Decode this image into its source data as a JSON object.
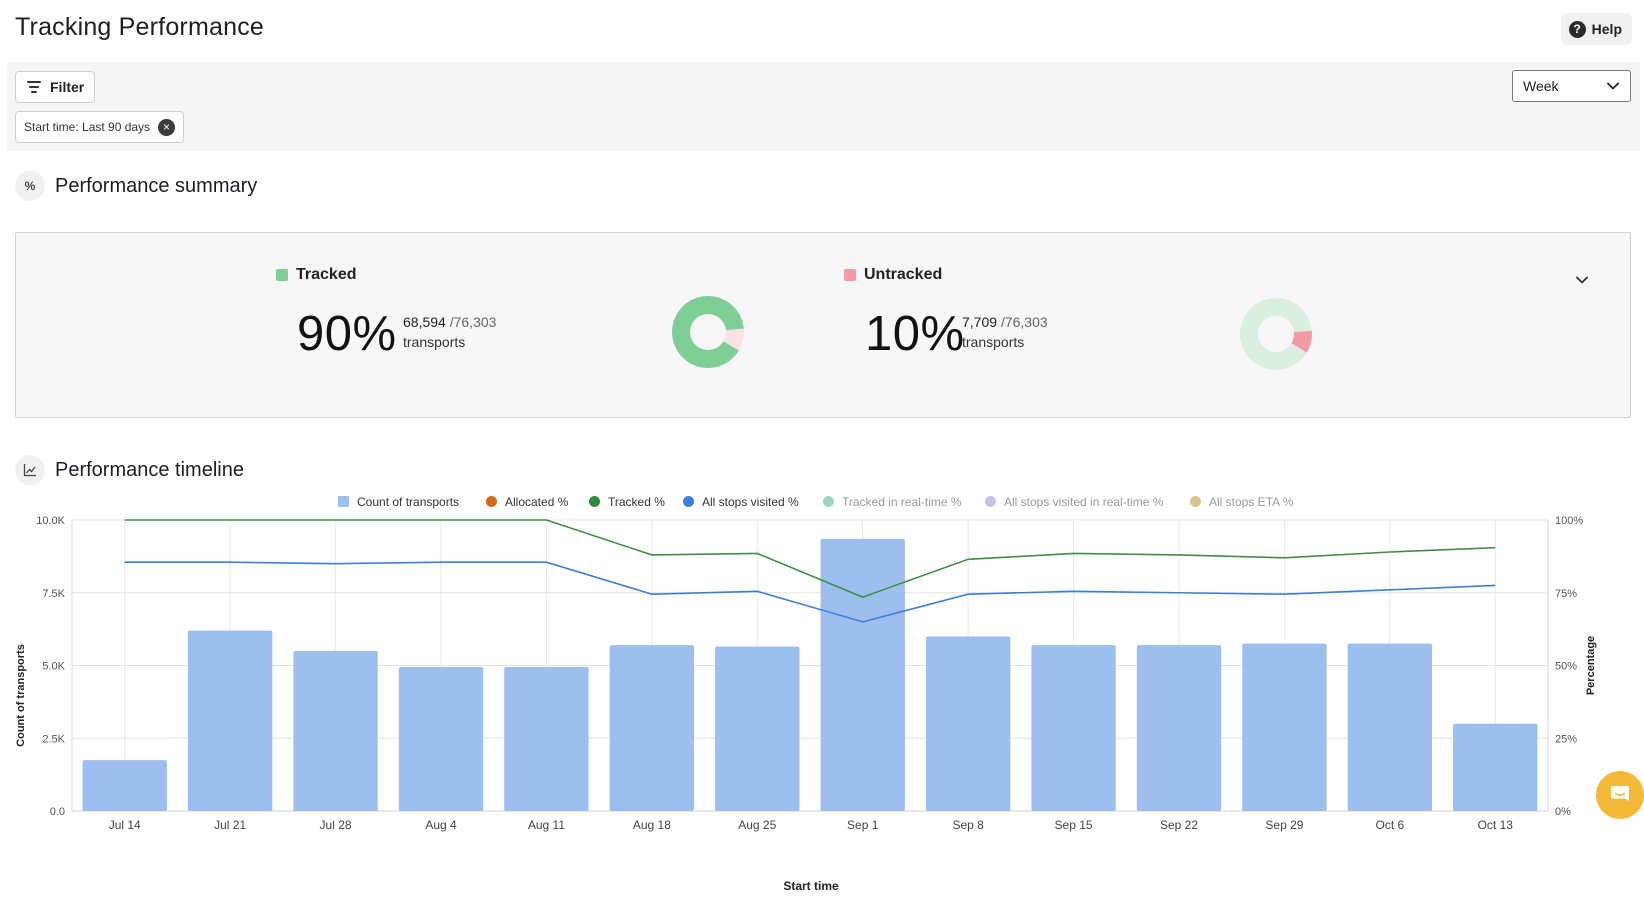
{
  "header": {
    "title": "Tracking Performance",
    "help_label": "Help"
  },
  "filters": {
    "filter_label": "Filter",
    "chip_label": "Start time: Last 90 days",
    "period_select": "Week"
  },
  "summary": {
    "title": "Performance summary",
    "icon_text": "%",
    "tracked": {
      "label": "Tracked",
      "percent": "90%",
      "count": "68,594",
      "total": "/76,303",
      "unit": "transports",
      "fraction": 0.899,
      "color": "#7fce96"
    },
    "untracked": {
      "label": "Untracked",
      "percent": "10%",
      "count": "7,709",
      "total": "/76,303",
      "unit": "transports",
      "fraction": 0.101,
      "color": "#f49aa4"
    }
  },
  "timeline": {
    "title": "Performance timeline"
  },
  "chart_data": {
    "type": "bar",
    "xlabel": "Start time",
    "ylabel": "Count of transports",
    "y2label": "Percentage",
    "ylim": [
      0,
      10000
    ],
    "y2lim": [
      0,
      100
    ],
    "yticks": [
      "0.0",
      "2.5K",
      "5.0K",
      "7.5K",
      "10.0K"
    ],
    "y2ticks": [
      "0%",
      "25%",
      "50%",
      "75%",
      "100%"
    ],
    "categories": [
      "Jul 14",
      "Jul 21",
      "Jul 28",
      "Aug 4",
      "Aug 11",
      "Aug 18",
      "Aug 25",
      "Sep 1",
      "Sep 8",
      "Sep 15",
      "Sep 22",
      "Sep 29",
      "Oct 6",
      "Oct 13"
    ],
    "legend": [
      {
        "name": "Count of transports",
        "color": "#9dbff0",
        "shape": "square",
        "active": true
      },
      {
        "name": "Allocated %",
        "color": "#d2691e",
        "shape": "circle",
        "active": true
      },
      {
        "name": "Tracked %",
        "color": "#2e8b3d",
        "shape": "circle",
        "active": true
      },
      {
        "name": "All stops visited %",
        "color": "#3b7ddd",
        "shape": "circle",
        "active": true
      },
      {
        "name": "Tracked in real-time %",
        "color": "#9fd6c0",
        "shape": "circle",
        "active": false
      },
      {
        "name": "All stops visited in real-time %",
        "color": "#c4c4e6",
        "shape": "circle",
        "active": false
      },
      {
        "name": "All stops ETA %",
        "color": "#d7c48c",
        "shape": "circle",
        "active": false
      }
    ],
    "legend_position": "top-center",
    "grid": true,
    "series": [
      {
        "name": "Count of transports",
        "axis": "left",
        "kind": "bar",
        "color": "#9dbff0",
        "values": [
          1750,
          6200,
          5500,
          4950,
          4950,
          5700,
          5650,
          9350,
          6000,
          5700,
          5700,
          5750,
          5750,
          3000
        ]
      },
      {
        "name": "Tracked %",
        "axis": "right",
        "kind": "line",
        "color": "#3f8f46",
        "values": [
          100,
          100,
          100,
          100,
          100,
          88,
          88.5,
          73.5,
          86.5,
          88.5,
          88,
          87,
          89,
          90.5
        ]
      },
      {
        "name": "All stops visited %",
        "axis": "right",
        "kind": "line",
        "color": "#3b7ddd",
        "values": [
          85.5,
          85.5,
          85,
          85.5,
          85.5,
          74.5,
          75.5,
          65,
          74.5,
          75.5,
          75,
          74.5,
          76,
          77.5
        ]
      }
    ]
  }
}
